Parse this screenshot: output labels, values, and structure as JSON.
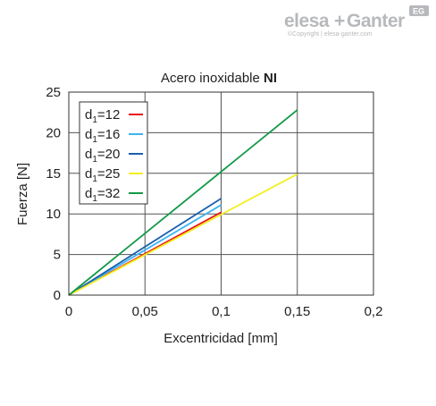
{
  "brand": {
    "name_part1": "elesa",
    "plus": "+",
    "name_part2": "Ganter",
    "copyright": "©Copyright | elesa-ganter.com",
    "badge": "EG"
  },
  "chart_data": {
    "type": "line",
    "title_prefix": "Acero inoxidable ",
    "title_bold": "NI",
    "xlabel": "Excentricidad [mm]",
    "ylabel": "Fuerza [N]",
    "xlim": [
      0,
      0.2
    ],
    "ylim": [
      0,
      25
    ],
    "x_ticks": [
      0,
      0.05,
      0.1,
      0.15,
      0.2
    ],
    "x_tick_labels": [
      "0",
      "0,05",
      "0,1",
      "0,15",
      "0,2"
    ],
    "y_ticks": [
      0,
      5,
      10,
      15,
      20,
      25
    ],
    "y_tick_labels": [
      "0",
      "5",
      "10",
      "15",
      "20",
      "25"
    ],
    "grid": true,
    "legend_position": "top-left",
    "legend_prefix": "d",
    "legend_subscript": "1",
    "series": [
      {
        "name": "=12",
        "color": "#e8141b",
        "x": [
          0,
          0.1
        ],
        "y": [
          0,
          10.2
        ]
      },
      {
        "name": "=16",
        "color": "#3db4ef",
        "x": [
          0,
          0.1
        ],
        "y": [
          0,
          11.1
        ]
      },
      {
        "name": "=20",
        "color": "#1b5fad",
        "x": [
          0,
          0.1
        ],
        "y": [
          0,
          11.9
        ]
      },
      {
        "name": "=25",
        "color": "#f3ef1c",
        "x": [
          0,
          0.15
        ],
        "y": [
          0,
          14.9
        ]
      },
      {
        "name": "=32",
        "color": "#139a48",
        "x": [
          0,
          0.15
        ],
        "y": [
          0,
          22.8
        ]
      }
    ]
  }
}
